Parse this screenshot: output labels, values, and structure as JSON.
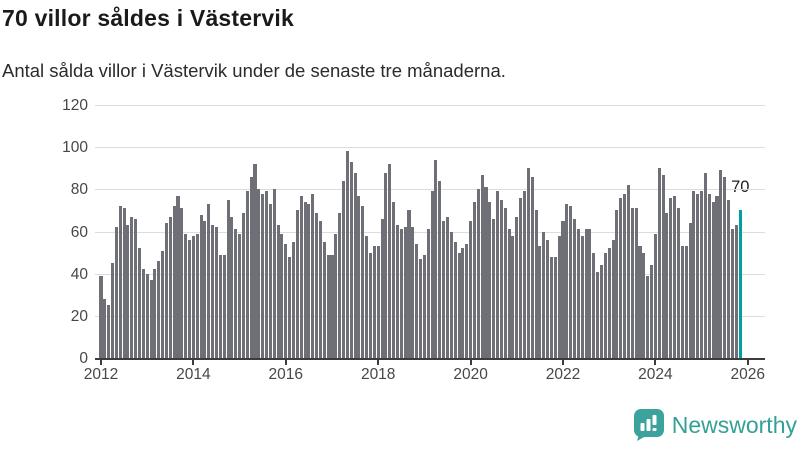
{
  "header": {
    "title": "70 villor såldes i Västervik",
    "subtitle": "Antal sålda villor i Västervik under de senaste tre månaderna."
  },
  "annotation": {
    "last_value_label": "70"
  },
  "footer": {
    "brand": "Newsworthy",
    "icon": "bar-chart-speech-bubble-icon"
  },
  "colors": {
    "bar": "#6f6f77",
    "highlight": "#00a0a0",
    "grid": "#dcdcdc",
    "axis": "#3c3c3c",
    "logo_teal": "#35a096"
  },
  "chart_data": {
    "type": "bar",
    "title": "70 villor såldes i Västervik",
    "subtitle": "Antal sålda villor i Västervik under de senaste tre månaderna.",
    "x_start": "2012-01",
    "frequency": "monthly",
    "ylim": [
      0,
      120
    ],
    "yticks": [
      0,
      20,
      40,
      60,
      80,
      100,
      120
    ],
    "xticks": [
      "2012",
      "2014",
      "2016",
      "2018",
      "2020",
      "2022",
      "2024",
      "2026"
    ],
    "grid": "horizontal",
    "legend": "none",
    "highlight_last_bar": true,
    "last_value": 70,
    "values": [
      39,
      28,
      25,
      45,
      62,
      72,
      71,
      63,
      67,
      66,
      52,
      42,
      40,
      37,
      42,
      46,
      51,
      64,
      67,
      72,
      77,
      71,
      59,
      56,
      58,
      59,
      68,
      65,
      73,
      63,
      62,
      49,
      49,
      75,
      67,
      61,
      59,
      69,
      79,
      86,
      92,
      80,
      78,
      79,
      73,
      80,
      63,
      59,
      54,
      48,
      55,
      70,
      77,
      74,
      73,
      78,
      69,
      65,
      55,
      49,
      49,
      59,
      69,
      84,
      98,
      93,
      88,
      77,
      72,
      58,
      50,
      53,
      53,
      66,
      88,
      92,
      74,
      63,
      61,
      62,
      70,
      62,
      54,
      47,
      49,
      61,
      79,
      94,
      84,
      65,
      67,
      60,
      55,
      50,
      52,
      54,
      65,
      74,
      80,
      87,
      81,
      74,
      66,
      79,
      75,
      71,
      61,
      58,
      67,
      76,
      79,
      90,
      86,
      70,
      53,
      60,
      56,
      48,
      48,
      58,
      65,
      73,
      72,
      66,
      61,
      58,
      61,
      61,
      50,
      41,
      44,
      50,
      52,
      56,
      70,
      76,
      78,
      82,
      71,
      71,
      53,
      50,
      39,
      44,
      59,
      90,
      87,
      69,
      76,
      77,
      71,
      53,
      53,
      64,
      79,
      78,
      79,
      88,
      78,
      74,
      77,
      89,
      86,
      75,
      61,
      63,
      70
    ]
  }
}
